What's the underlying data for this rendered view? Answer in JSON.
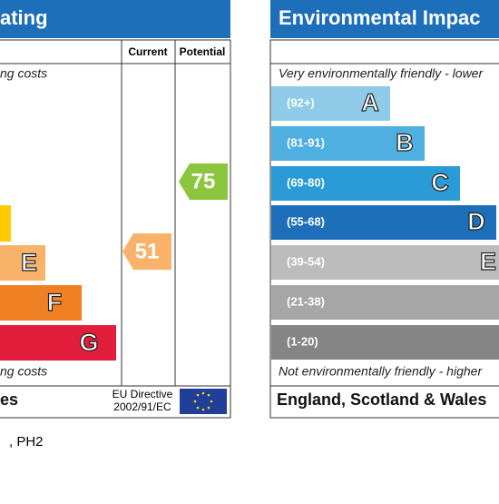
{
  "left_panel": {
    "title": "ating",
    "col_current": "Current",
    "col_potential": "Potential",
    "top_note": "ng costs",
    "bands": [
      {
        "letter": "E"
      },
      {
        "letter": "F"
      },
      {
        "letter": "G"
      }
    ],
    "bottom_note": "ng costs",
    "footer": "es",
    "directive": [
      "EU Directive",
      "2002/91/EC"
    ],
    "current": 51,
    "potential": 75
  },
  "right_panel": {
    "title": "Environmental Impac",
    "top_note": "Very environmentally friendly - lower",
    "bands": [
      {
        "range": "(92+)",
        "letter": "A"
      },
      {
        "range": "(81-91)",
        "letter": "B"
      },
      {
        "range": "(69-80)",
        "letter": "C"
      },
      {
        "range": "(55-68)",
        "letter": "D"
      },
      {
        "range": "(39-54)",
        "letter": "E"
      },
      {
        "range": "(21-38)"
      },
      {
        "range": "(1-20)"
      }
    ],
    "bottom_note": "Not environmentally friendly - higher",
    "footer": "England, Scotland & Wales"
  },
  "address": ", PH2"
}
